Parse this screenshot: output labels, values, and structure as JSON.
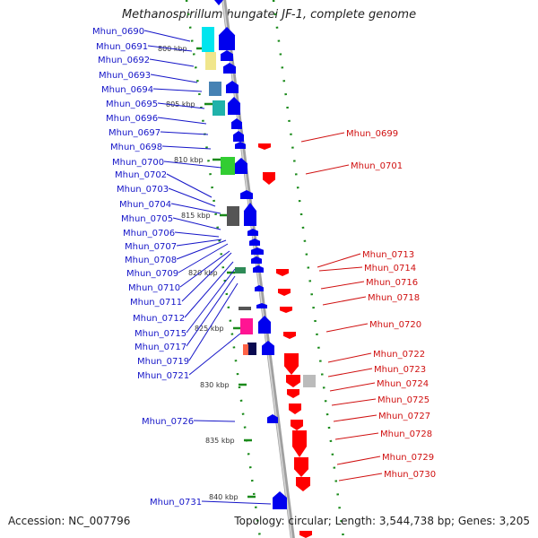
{
  "title": "Methanospirillum hungatei JF-1, complete genome",
  "footer": {
    "accession": "Accession: NC_007796",
    "summary": "Topology: circular; Length: 3,544,738 bp; Genes: 3,205"
  },
  "colors": {
    "forward_gene": "#0000ee",
    "reverse_gene": "#ff0000",
    "left_label": "#1515c8",
    "right_label": "#d01010",
    "backbone": "#909090",
    "tick": "#1a8a1a"
  },
  "scale_labels": [
    "800 kbp",
    "805 kbp",
    "810 kbp",
    "815 kbp",
    "820 kbp",
    "825 kbp",
    "830 kbp",
    "835 kbp",
    "840 kbp"
  ],
  "left_genes": [
    "Mhun_0690",
    "Mhun_0691",
    "Mhun_0692",
    "Mhun_0693",
    "Mhun_0694",
    "Mhun_0695",
    "Mhun_0696",
    "Mhun_0697",
    "Mhun_0698",
    "Mhun_0700",
    "Mhun_0702",
    "Mhun_0703",
    "Mhun_0704",
    "Mhun_0705",
    "Mhun_0706",
    "Mhun_0707",
    "Mhun_0708",
    "Mhun_0709",
    "Mhun_0710",
    "Mhun_0711",
    "Mhun_0712",
    "Mhun_0715",
    "Mhun_0717",
    "Mhun_0719",
    "Mhun_0721",
    "Mhun_0726",
    "Mhun_0731"
  ],
  "right_genes": [
    "Mhun_0699",
    "Mhun_0701",
    "Mhun_0713",
    "Mhun_0714",
    "Mhun_0716",
    "Mhun_0718",
    "Mhun_0720",
    "Mhun_0722",
    "Mhun_0723",
    "Mhun_0724",
    "Mhun_0725",
    "Mhun_0727",
    "Mhun_0728",
    "Mhun_0729",
    "Mhun_0730"
  ]
}
